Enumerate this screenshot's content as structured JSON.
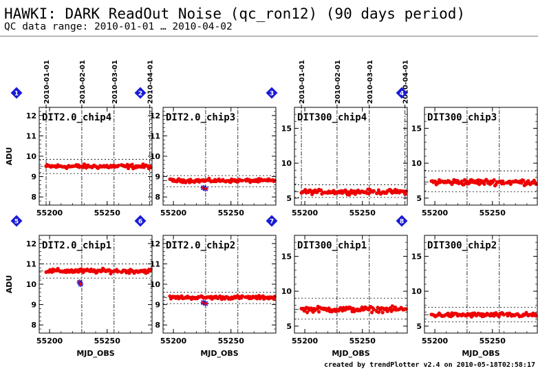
{
  "header": {
    "title": "HAWKI: DARK ReadOut Noise (qc_ron12) (90 days period)",
    "subtitle": "QC data range: 2010-01-01 … 2010-04-02"
  },
  "footer": "created by trendPlotter v2.4 on 2010-05-18T02:58:17",
  "colors": {
    "points": "#ee0000",
    "outlier": "#1a1ad8",
    "marker": "#1a1ad8",
    "grid": "#000000"
  },
  "chart_data": [
    {
      "type": "scatter",
      "number": "1",
      "title": "DIT2.0_chip4",
      "ylabel": "ADU",
      "xlabel": "",
      "xlim": [
        55191,
        55289
      ],
      "ylim": [
        7.6,
        12.4
      ],
      "yticks": [
        8,
        9,
        10,
        11,
        12
      ],
      "xticks": [
        55200,
        55250
      ],
      "date_labels": [
        "2010-01-01",
        "2010-02-01",
        "2010-03-01",
        "2010-04-01"
      ],
      "date_mjd": [
        55197,
        55228,
        55256,
        55287
      ],
      "level": 9.5,
      "band": [
        9.15,
        9.85
      ],
      "scatter_amp": 0.15,
      "outliers": []
    },
    {
      "type": "scatter",
      "number": "2",
      "title": "DIT2.0_chip3",
      "ylabel": "",
      "xlabel": "",
      "xlim": [
        55191,
        55289
      ],
      "ylim": [
        7.6,
        12.4
      ],
      "yticks": [
        8,
        9,
        10,
        11,
        12
      ],
      "xticks": [
        55200,
        55250
      ],
      "date_labels": [],
      "date_mjd": [
        55228,
        55256
      ],
      "level": 8.8,
      "band": [
        8.5,
        9.05
      ],
      "scatter_amp": 0.12,
      "outliers": [
        {
          "x": 55226,
          "y": 8.45
        },
        {
          "x": 55228,
          "y": 8.4
        }
      ]
    },
    {
      "type": "scatter",
      "number": "3",
      "title": "DIT300_chip4",
      "ylabel": "",
      "xlabel": "",
      "xlim": [
        55191,
        55289
      ],
      "ylim": [
        4,
        18
      ],
      "yticks": [
        5,
        10,
        15
      ],
      "xticks": [
        55200,
        55250
      ],
      "date_labels": [
        "2010-01-01",
        "2010-02-01",
        "2010-03-01",
        "2010-04-01"
      ],
      "date_mjd": [
        55197,
        55228,
        55256,
        55287
      ],
      "level": 5.9,
      "band": [
        5.1,
        6.9
      ],
      "scatter_amp": 0.45,
      "outliers": []
    },
    {
      "type": "scatter",
      "number": "4",
      "title": "DIT300_chip3",
      "ylabel": "",
      "xlabel": "",
      "xlim": [
        55191,
        55289
      ],
      "ylim": [
        4,
        18
      ],
      "yticks": [
        5,
        10,
        15
      ],
      "xticks": [
        55200,
        55250
      ],
      "date_labels": [],
      "date_mjd": [
        55228,
        55256
      ],
      "level": 7.3,
      "band": [
        5.9,
        8.9
      ],
      "scatter_amp": 0.6,
      "outliers": []
    },
    {
      "type": "scatter",
      "number": "5",
      "title": "DIT2.0_chip1",
      "ylabel": "ADU",
      "xlabel": "MJD_OBS",
      "xlim": [
        55191,
        55289
      ],
      "ylim": [
        7.6,
        12.4
      ],
      "yticks": [
        8,
        9,
        10,
        11,
        12
      ],
      "xticks": [
        55200,
        55250
      ],
      "date_labels": [],
      "date_mjd": [
        55228,
        55256
      ],
      "level": 10.65,
      "band": [
        10.3,
        11.0
      ],
      "scatter_amp": 0.15,
      "outliers": [
        {
          "x": 55226,
          "y": 10.1
        },
        {
          "x": 55227,
          "y": 10.0
        }
      ]
    },
    {
      "type": "scatter",
      "number": "6",
      "title": "DIT2.0_chip2",
      "ylabel": "",
      "xlabel": "MJD_OBS",
      "xlim": [
        55191,
        55289
      ],
      "ylim": [
        7.6,
        12.4
      ],
      "yticks": [
        8,
        9,
        10,
        11,
        12
      ],
      "xticks": [
        55200,
        55250
      ],
      "date_labels": [],
      "date_mjd": [
        55228,
        55256
      ],
      "level": 9.35,
      "band": [
        9.05,
        9.6
      ],
      "scatter_amp": 0.12,
      "outliers": [
        {
          "x": 55226,
          "y": 9.1
        },
        {
          "x": 55228,
          "y": 9.05
        }
      ]
    },
    {
      "type": "scatter",
      "number": "7",
      "title": "DIT300_chip1",
      "ylabel": "",
      "xlabel": "MJD_OBS",
      "xlim": [
        55191,
        55289
      ],
      "ylim": [
        4,
        18
      ],
      "yticks": [
        5,
        10,
        15
      ],
      "xticks": [
        55200,
        55250
      ],
      "date_labels": [],
      "date_mjd": [
        55228,
        55256
      ],
      "level": 7.4,
      "band": [
        6.0,
        9.0
      ],
      "scatter_amp": 0.55,
      "outliers": []
    },
    {
      "type": "scatter",
      "number": "8",
      "title": "DIT300_chip2",
      "ylabel": "",
      "xlabel": "MJD_OBS",
      "xlim": [
        55191,
        55289
      ],
      "ylim": [
        4,
        18
      ],
      "yticks": [
        5,
        10,
        15
      ],
      "xticks": [
        55200,
        55250
      ],
      "date_labels": [],
      "date_mjd": [
        55228,
        55256
      ],
      "level": 6.6,
      "band": [
        5.6,
        7.7
      ],
      "scatter_amp": 0.45,
      "outliers": []
    }
  ]
}
